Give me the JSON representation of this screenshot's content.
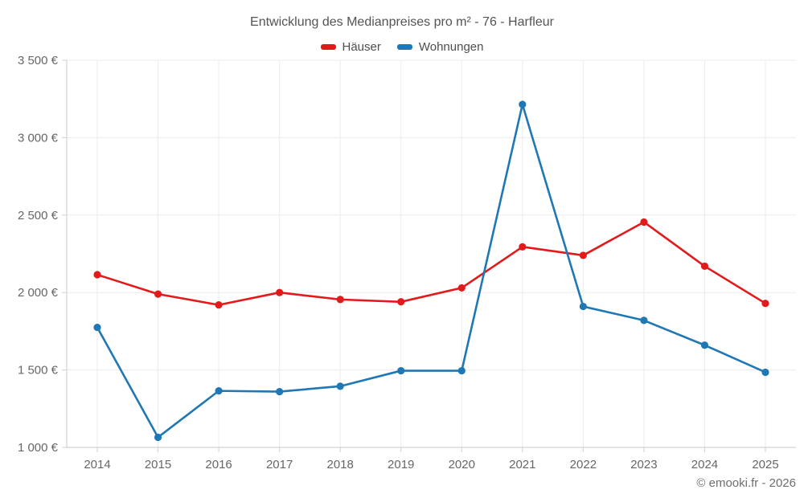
{
  "header": {
    "title": "Entwicklung des Medianpreises pro m² - 76 - Harfleur"
  },
  "legend": {
    "items": [
      {
        "id": "haeuser",
        "label": "Häuser",
        "color": "#e31a1c"
      },
      {
        "id": "wohnungen",
        "label": "Wohnungen",
        "color": "#1f78b4"
      }
    ]
  },
  "footer": {
    "attribution": "© emooki.fr - 2026"
  },
  "chart_data": {
    "type": "line",
    "title": "Entwicklung des Medianpreises pro m² - 76 - Harfleur",
    "x": [
      2014,
      2015,
      2016,
      2017,
      2018,
      2019,
      2020,
      2021,
      2022,
      2023,
      2024,
      2025
    ],
    "xtick_labels": [
      "2014",
      "2015",
      "2016",
      "2017",
      "2018",
      "2019",
      "2020",
      "2021",
      "2022",
      "2023",
      "2024",
      "2025"
    ],
    "series": [
      {
        "id": "haeuser",
        "name": "Häuser",
        "color": "#e31a1c",
        "values": [
          2115,
          1990,
          1920,
          2000,
          1955,
          1940,
          2030,
          2295,
          2240,
          2455,
          2170,
          1930
        ]
      },
      {
        "id": "wohnungen",
        "name": "Wohnungen",
        "color": "#1f78b4",
        "values": [
          1775,
          1065,
          1365,
          1360,
          1395,
          1495,
          1495,
          3215,
          1910,
          1820,
          1660,
          1485
        ]
      }
    ],
    "ylabel": "",
    "xlabel": "",
    "unit": "€",
    "ylim": [
      1000,
      3500
    ],
    "yticks": [
      1000,
      1500,
      2000,
      2500,
      3000,
      3500
    ],
    "ytick_labels": [
      "1 000 €",
      "1 500 €",
      "2 000 €",
      "2 500 €",
      "3 000 €",
      "3 500 €"
    ],
    "grid": true,
    "legend_position": "top"
  },
  "style": {
    "grid_color": "#ebebeb",
    "axis_color": "#c9c9c9",
    "tick_color": "#cfcfcf",
    "label_color": "#666666"
  }
}
